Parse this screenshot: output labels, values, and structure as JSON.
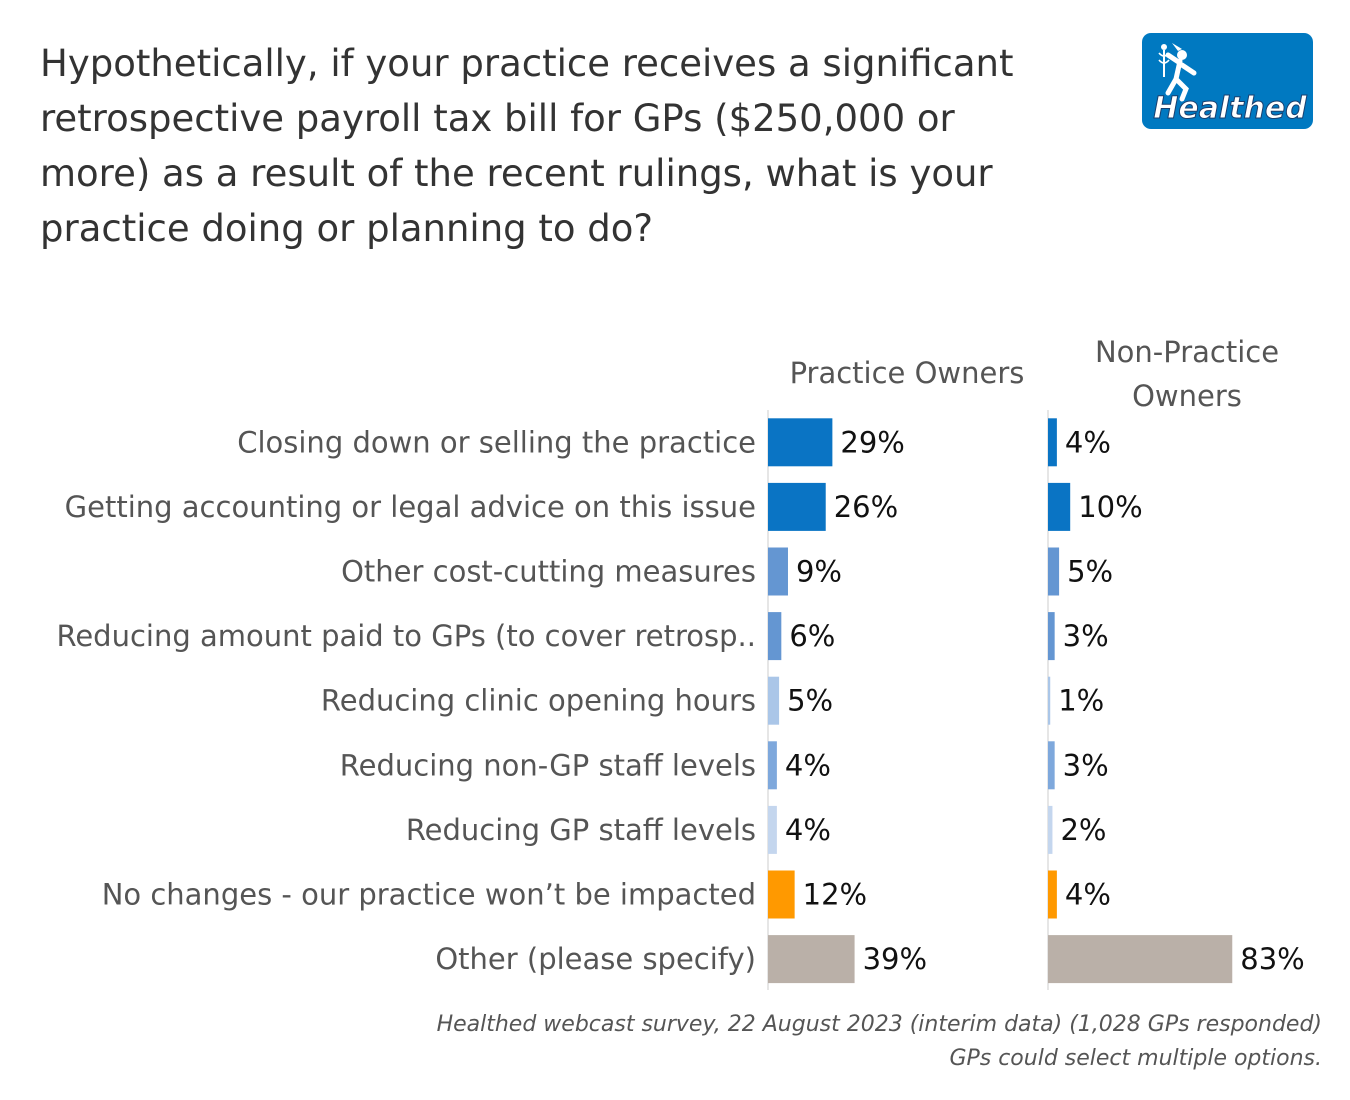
{
  "title": "Hypothetically, if your practice receives a significant retrospective payroll tax bill for GPs ($250,000 or more) as a result of the recent rulings, what is your practice doing or planning to do?",
  "logo": {
    "text": "Healthed",
    "icon": "hermes-runner-icon",
    "bg_color": "#0079c1"
  },
  "source": {
    "line1": "Healthed webcast survey, 22 August 2023 (interim data) (1,028 GPs responded)",
    "line2": "GPs could select multiple options."
  },
  "chart_data": {
    "type": "bar",
    "orientation": "horizontal",
    "categories": [
      "Closing down or selling the practice",
      "Getting accounting or legal advice on this issue",
      "Other cost-cutting measures",
      "Reducing amount paid to GPs (to cover retrosp..",
      "Reducing clinic opening hours",
      "Reducing non-GP staff levels",
      "Reducing GP staff levels",
      "No changes - our practice won’t be impacted",
      "Other (please specify)"
    ],
    "bar_colors": [
      "#0a74c4",
      "#0a74c4",
      "#6496d2",
      "#6496d2",
      "#aac6e8",
      "#7ea8dc",
      "#c4d6ee",
      "#ff9900",
      "#bab0a8"
    ],
    "series": [
      {
        "name": "Practice Owners",
        "header_lines": [
          "Practice Owners"
        ],
        "values": [
          29,
          26,
          9,
          6,
          5,
          4,
          4,
          12,
          39
        ],
        "labels": [
          "29%",
          "26%",
          "9%",
          "6%",
          "5%",
          "4%",
          "4%",
          "12%",
          "39%"
        ]
      },
      {
        "name": "Non-Practice Owners",
        "header_lines": [
          "Non-Practice",
          "Owners"
        ],
        "values": [
          4,
          10,
          5,
          3,
          1,
          3,
          2,
          4,
          83
        ],
        "labels": [
          "4%",
          "10%",
          "5%",
          "3%",
          "1%",
          "3%",
          "2%",
          "4%",
          "83%"
        ]
      }
    ],
    "value_unit": "%",
    "xlim": [
      0,
      100
    ],
    "grid": false,
    "legend": "none"
  }
}
